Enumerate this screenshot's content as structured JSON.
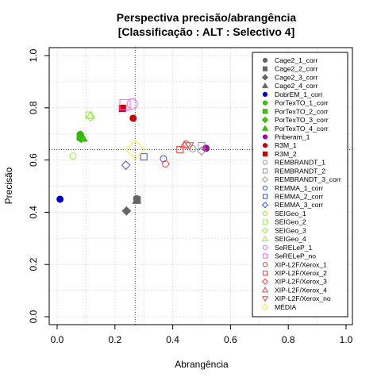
{
  "chart_data": {
    "type": "scatter",
    "title": "Perspectiva precisão/abrangência",
    "subtitle": "[Classificação : ALT : Selectivo 4]",
    "xlabel": "Abrangência",
    "ylabel": "Precisão",
    "xlim": [
      0,
      1
    ],
    "ylim": [
      0,
      1
    ],
    "xticks": [
      "0.0",
      "0.2",
      "0.4",
      "0.6",
      "0.8",
      "1.0"
    ],
    "yticks": [
      "0.0",
      "0.2",
      "0.4",
      "0.6",
      "0.8",
      "1.0"
    ],
    "grid": true,
    "legend_position": "right",
    "reference_lines": {
      "x": 0.27,
      "y": 0.64
    },
    "series": [
      {
        "name": "Cage2_1_corr",
        "shape": "circle",
        "color": "#666666",
        "fill": "#666666",
        "points": [
          [
            0.275,
            0.452
          ]
        ]
      },
      {
        "name": "Cage2_2_corr",
        "shape": "square",
        "color": "#666666",
        "fill": "#666666",
        "points": [
          [
            0.277,
            0.448
          ]
        ]
      },
      {
        "name": "Cage2_3_corr",
        "shape": "diamond",
        "color": "#666666",
        "fill": "#666666",
        "points": [
          [
            0.24,
            0.405
          ]
        ]
      },
      {
        "name": "Cage2_4_corr",
        "shape": "triangle",
        "color": "#666666",
        "fill": "#666666",
        "points": [
          [
            0.275,
            0.445
          ]
        ]
      },
      {
        "name": "DobrEM_1_corr",
        "shape": "circle",
        "color": "#0000cc",
        "fill": "#0000cc",
        "points": [
          [
            0.01,
            0.45
          ]
        ]
      },
      {
        "name": "PorTexTO_1_corr",
        "shape": "circle",
        "color": "#33aa00",
        "fill": "#33cc00",
        "points": [
          [
            0.08,
            0.698
          ]
        ]
      },
      {
        "name": "PorTexTO_2_corr",
        "shape": "square",
        "color": "#33aa00",
        "fill": "#33cc00",
        "points": [
          [
            0.08,
            0.688
          ]
        ]
      },
      {
        "name": "PorTexTO_3_corr",
        "shape": "diamond",
        "color": "#33aa00",
        "fill": "#33cc00",
        "points": [
          [
            0.083,
            0.683
          ]
        ]
      },
      {
        "name": "PorTexTO_4_corr",
        "shape": "triangle",
        "color": "#33aa00",
        "fill": "#33cc00",
        "points": [
          [
            0.09,
            0.683
          ]
        ]
      },
      {
        "name": "Priberam_1",
        "shape": "circle",
        "color": "#990099",
        "fill": "#aa00aa",
        "points": [
          [
            0.515,
            0.645
          ]
        ]
      },
      {
        "name": "R3M_1",
        "shape": "circle",
        "color": "#cc0000",
        "fill": "#cc0000",
        "points": [
          [
            0.263,
            0.76
          ]
        ]
      },
      {
        "name": "R3M_2",
        "shape": "square",
        "color": "#cc0000",
        "fill": "#cc0000",
        "points": [
          [
            0.226,
            0.798
          ]
        ]
      },
      {
        "name": "REMBRANDT_1",
        "shape": "circle",
        "color": "#999999",
        "fill": "none",
        "points": [
          [
            0.47,
            0.643
          ]
        ]
      },
      {
        "name": "REMBRANDT_2",
        "shape": "square",
        "color": "#999999",
        "fill": "none",
        "points": [
          [
            0.5,
            0.655
          ]
        ]
      },
      {
        "name": "REMBRANDT_3_corr",
        "shape": "diamond",
        "color": "#999999",
        "fill": "none",
        "points": [
          [
            0.5,
            0.635
          ]
        ]
      },
      {
        "name": "REMMA_1_corr",
        "shape": "circle",
        "color": "#3355ee",
        "fill": "none",
        "points": [
          [
            0.368,
            0.605
          ]
        ]
      },
      {
        "name": "REMMA_2_corr",
        "shape": "square",
        "color": "#3355ee",
        "fill": "none",
        "points": [
          [
            0.3,
            0.612
          ]
        ]
      },
      {
        "name": "REMMA_3_corr",
        "shape": "diamond",
        "color": "#3355ee",
        "fill": "none",
        "points": [
          [
            0.238,
            0.58
          ]
        ]
      },
      {
        "name": "SEIGeo_1",
        "shape": "circle",
        "color": "#99ee44",
        "fill": "none",
        "points": [
          [
            0.055,
            0.615
          ]
        ]
      },
      {
        "name": "SEIGeo_2",
        "shape": "square",
        "color": "#99ee44",
        "fill": "none",
        "points": [
          [
            0.11,
            0.772
          ]
        ]
      },
      {
        "name": "SEIGeo_3",
        "shape": "diamond",
        "color": "#99ee44",
        "fill": "none",
        "points": [
          [
            0.115,
            0.765
          ]
        ]
      },
      {
        "name": "SEIGeo_4",
        "shape": "triangle",
        "color": "#99ee44",
        "fill": "none",
        "points": [
          [
            0.115,
            0.77
          ]
        ]
      },
      {
        "name": "SeRELeP_1",
        "shape": "circle",
        "color": "#ee66ee",
        "fill": "none",
        "points": [
          [
            0.26,
            0.815
          ]
        ]
      },
      {
        "name": "SeRELeP_no",
        "shape": "square",
        "color": "#ee66ee",
        "fill": "none",
        "points": [
          [
            0.235,
            0.812
          ]
        ]
      },
      {
        "name": "XIP-L2F/Xerox_1",
        "shape": "circle",
        "color": "#ee4444",
        "fill": "none",
        "points": [
          [
            0.375,
            0.585
          ]
        ]
      },
      {
        "name": "XIP-L2F/Xerox_2",
        "shape": "square",
        "color": "#ee4444",
        "fill": "none",
        "points": [
          [
            0.425,
            0.64
          ]
        ]
      },
      {
        "name": "XIP-L2F/Xerox_3",
        "shape": "diamond",
        "color": "#ee4444",
        "fill": "none",
        "points": [
          [
            0.448,
            0.66
          ]
        ]
      },
      {
        "name": "XIP-L2F/Xerox_4",
        "shape": "triangle",
        "color": "#ee4444",
        "fill": "none",
        "points": [
          [
            0.44,
            0.658
          ]
        ]
      },
      {
        "name": "XIP-L2F/Xerox_no",
        "shape": "triangle-down",
        "color": "#ee4444",
        "fill": "none",
        "points": [
          [
            0.458,
            0.655
          ]
        ]
      },
      {
        "name": "MÉDIA",
        "shape": "diamond-big",
        "color": "#eeee44",
        "fill": "none",
        "points": [
          [
            0.27,
            0.64
          ]
        ]
      }
    ]
  }
}
